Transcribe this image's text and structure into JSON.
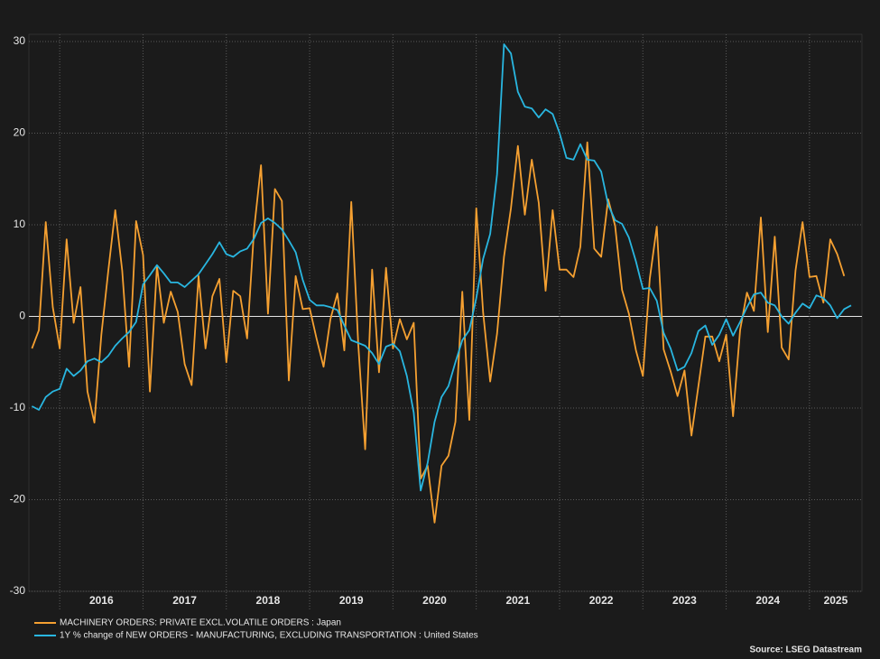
{
  "chart_data": {
    "type": "line",
    "x": [
      2015.667,
      2015.75,
      2015.833,
      2015.917,
      2016.0,
      2016.083,
      2016.167,
      2016.25,
      2016.333,
      2016.417,
      2016.5,
      2016.583,
      2016.667,
      2016.75,
      2016.833,
      2016.917,
      2017.0,
      2017.083,
      2017.167,
      2017.25,
      2017.333,
      2017.417,
      2017.5,
      2017.583,
      2017.667,
      2017.75,
      2017.833,
      2017.917,
      2018.0,
      2018.083,
      2018.167,
      2018.25,
      2018.333,
      2018.417,
      2018.5,
      2018.583,
      2018.667,
      2018.75,
      2018.833,
      2018.917,
      2019.0,
      2019.083,
      2019.167,
      2019.25,
      2019.333,
      2019.417,
      2019.5,
      2019.583,
      2019.667,
      2019.75,
      2019.833,
      2019.917,
      2020.0,
      2020.083,
      2020.167,
      2020.25,
      2020.333,
      2020.417,
      2020.5,
      2020.583,
      2020.667,
      2020.75,
      2020.833,
      2020.917,
      2021.0,
      2021.083,
      2021.167,
      2021.25,
      2021.333,
      2021.417,
      2021.5,
      2021.583,
      2021.667,
      2021.75,
      2021.833,
      2021.917,
      2022.0,
      2022.083,
      2022.167,
      2022.25,
      2022.333,
      2022.417,
      2022.5,
      2022.583,
      2022.667,
      2022.75,
      2022.833,
      2022.917,
      2023.0,
      2023.083,
      2023.167,
      2023.25,
      2023.333,
      2023.417,
      2023.5,
      2023.583,
      2023.667,
      2023.75,
      2023.833,
      2023.917,
      2024.0,
      2024.083,
      2024.167,
      2024.25,
      2024.333,
      2024.417,
      2024.5,
      2024.583,
      2024.667,
      2024.75,
      2024.833,
      2024.917,
      2025.0,
      2025.083,
      2025.167,
      2025.25,
      2025.333,
      2025.417,
      2025.5
    ],
    "series": [
      {
        "name": "MACHINERY ORDERS: PRIVATE EXCL.VOLATILE ORDERS : Japan",
        "color": "#f5a031",
        "values": [
          -3.5,
          -1.5,
          10.3,
          1.0,
          -3.5,
          8.4,
          -0.7,
          3.2,
          -8.2,
          -11.6,
          -2,
          5,
          11.6,
          5,
          -5.5,
          10.4,
          6.7,
          -8.2,
          5.5,
          -0.7,
          2.7,
          0.5,
          -5.2,
          -7.5,
          4.4,
          -3.5,
          2.2,
          4.1,
          -5.0,
          2.8,
          2.2,
          -2.4,
          9.5,
          16.5,
          0.3,
          13.9,
          12.6,
          -7.0,
          4.4,
          0.8,
          0.9,
          -2.4,
          -5.5,
          -0.3,
          2.5,
          -3.7,
          12.5,
          -3.0,
          -14.5,
          5.1,
          -6.1,
          5.3,
          -3.5,
          -0.3,
          -2.5,
          -0.7,
          -17.7,
          -16.3,
          -22.5,
          -16.3,
          -15.2,
          -11.5,
          2.7,
          -11.3,
          11.8,
          0.4,
          -7.1,
          -1.9,
          6.5,
          11.8,
          18.6,
          11.1,
          17.1,
          12.4,
          2.8,
          11.6,
          5.1,
          5.1,
          4.3,
          7.6,
          19.0,
          7.4,
          6.5,
          12.8,
          9.9,
          2.9,
          0.3,
          -3.7,
          -6.5,
          4.1,
          9.8,
          -3.6,
          -6.0,
          -8.7,
          -5.9,
          -13.0,
          -7.6,
          -2.2,
          -2.2,
          -4.9,
          -2.0,
          -10.9,
          -1.5,
          2.6,
          0.6,
          10.8,
          -1.7,
          8.7,
          -3.4,
          -4.7,
          5.0,
          10.3,
          4.3,
          4.4,
          1.5,
          8.4,
          6.8,
          4.4,
          null
        ]
      },
      {
        "name": "1Y % change of NEW ORDERS - MANUFACTURING, EXCLUDING TRANSPORTATION : United States",
        "color": "#29b6e0",
        "values": [
          -9.8,
          -10.2,
          -8.8,
          -8.2,
          -7.9,
          -5.7,
          -6.5,
          -5.9,
          -4.9,
          -4.6,
          -5.0,
          -4.3,
          -3.2,
          -2.4,
          -1.7,
          -0.6,
          3.5,
          4.5,
          5.6,
          4.7,
          3.7,
          3.7,
          3.2,
          3.9,
          4.6,
          5.7,
          6.8,
          8.1,
          6.8,
          6.5,
          7.1,
          7.4,
          8.5,
          10.2,
          10.7,
          10.2,
          9.5,
          8.3,
          7.0,
          4.0,
          1.8,
          1.2,
          1.2,
          1.0,
          0.7,
          -1.0,
          -2.6,
          -2.9,
          -3.2,
          -4.0,
          -5.2,
          -3.3,
          -3.0,
          -3.8,
          -6.5,
          -10.5,
          -19.0,
          -16.0,
          -11.5,
          -8.8,
          -7.6,
          -5.0,
          -2.6,
          -1.5,
          2.0,
          6.3,
          9.0,
          15.5,
          29.7,
          28.7,
          24.5,
          22.9,
          22.7,
          21.7,
          22.6,
          22.1,
          20.0,
          17.3,
          17.1,
          18.8,
          17.1,
          17.0,
          15.8,
          12.2,
          10.5,
          10.1,
          8.6,
          6.0,
          3.0,
          3.1,
          1.7,
          -1.8,
          -3.5,
          -5.9,
          -5.5,
          -4.0,
          -1.6,
          -1.0,
          -3.1,
          -2.0,
          -0.3,
          -2.1,
          -0.6,
          1.0,
          2.4,
          2.6,
          1.5,
          1.2,
          0.0,
          -0.8,
          0.4,
          1.4,
          0.9,
          2.3,
          2.0,
          1.2,
          -0.2,
          0.8,
          1.2
        ]
      }
    ],
    "xlim": [
      2015.63,
      2025.63
    ],
    "xticks": [
      2016,
      2017,
      2018,
      2019,
      2020,
      2021,
      2022,
      2023,
      2024,
      2025
    ],
    "ylim": [
      -30,
      30
    ],
    "yticks": [
      -30,
      -20,
      -10,
      0,
      10,
      20,
      30
    ],
    "grid": true,
    "source": "Source: LSEG Datastream"
  }
}
